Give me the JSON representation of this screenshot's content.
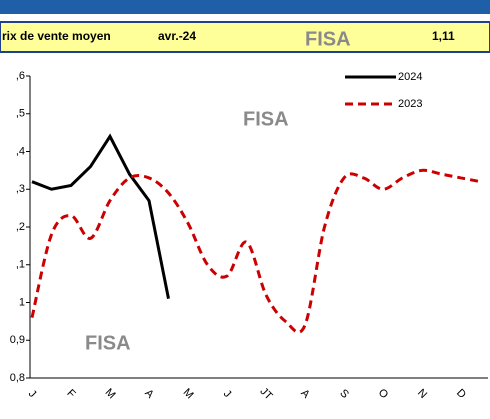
{
  "header": {
    "label": "rix de vente moyen",
    "period": "avr.-24",
    "value": "1,11",
    "logo": "FISA"
  },
  "chart_data": {
    "type": "line",
    "categories": [
      "J",
      null,
      "F",
      null,
      "M",
      null,
      "A",
      null,
      "M",
      null,
      "J",
      null,
      "JT",
      null,
      "A",
      null,
      "S",
      null,
      "O",
      null,
      "N",
      null,
      "D",
      null
    ],
    "series": [
      {
        "name": "2024",
        "color": "#000000",
        "dash": false,
        "values": [
          1.32,
          1.3,
          1.31,
          1.36,
          1.44,
          1.34,
          1.27,
          1.01,
          null,
          null,
          null,
          null,
          null,
          null,
          null,
          null,
          null,
          null,
          null,
          null,
          null,
          null,
          null,
          null
        ]
      },
      {
        "name": "2023",
        "color": "#cc0000",
        "dash": true,
        "values": [
          0.96,
          1.18,
          1.23,
          1.17,
          1.27,
          1.33,
          1.33,
          1.29,
          1.21,
          1.1,
          1.07,
          1.16,
          1.02,
          0.95,
          0.94,
          1.2,
          1.33,
          1.33,
          1.3,
          1.33,
          1.35,
          1.34,
          1.33,
          1.32
        ]
      }
    ],
    "ylim": [
      0.8,
      1.6
    ],
    "yticks": [
      {
        "value": 0.8,
        "label": "0,8"
      },
      {
        "value": 0.9,
        "label": "0,9"
      },
      1,
      {
        "value": 1.1,
        "label": ",1"
      },
      {
        "value": 1.2,
        "label": ",2"
      },
      {
        "value": 1.3,
        "label": ",3"
      },
      {
        "value": 1.4,
        "label": ",4"
      },
      {
        "value": 1.5,
        "label": ",5"
      },
      {
        "value": 1.6,
        "label": ",6"
      }
    ]
  }
}
